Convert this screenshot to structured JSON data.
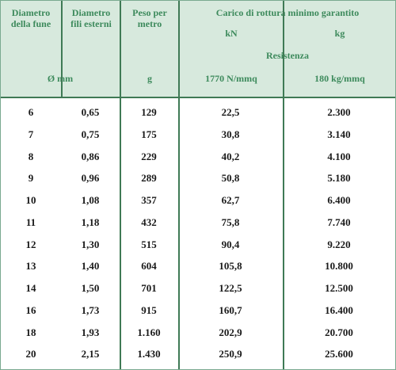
{
  "header": {
    "col1": [
      "Diametro",
      "della fune"
    ],
    "col2": [
      "Diametro",
      "fili esterni"
    ],
    "col3": [
      "Peso per",
      "metro"
    ],
    "col4_title": "Carico  di rottura minimo  garantito",
    "kn": "kN",
    "kg": "kg",
    "resistenza": "Resistenza",
    "unit_mm": "Ø mm",
    "unit_g": "g",
    "unit_1770": "1770  N/mmq",
    "unit_180": "180  kg/mmq"
  },
  "rows": [
    {
      "d": "6",
      "fili": "0,65",
      "peso": "129",
      "kn": "22,5",
      "kg": "2.300"
    },
    {
      "d": "7",
      "fili": "0,75",
      "peso": "175",
      "kn": "30,8",
      "kg": "3.140"
    },
    {
      "d": "8",
      "fili": "0,86",
      "peso": "229",
      "kn": "40,2",
      "kg": "4.100"
    },
    {
      "d": "9",
      "fili": "0,96",
      "peso": "289",
      "kn": "50,8",
      "kg": "5.180"
    },
    {
      "d": "10",
      "fili": "1,08",
      "peso": "357",
      "kn": "62,7",
      "kg": "6.400"
    },
    {
      "d": "11",
      "fili": "1,18",
      "peso": "432",
      "kn": "75,8",
      "kg": "7.740"
    },
    {
      "d": "12",
      "fili": "1,30",
      "peso": "515",
      "kn": "90,4",
      "kg": "9.220"
    },
    {
      "d": "13",
      "fili": "1,40",
      "peso": "604",
      "kn": "105,8",
      "kg": "10.800"
    },
    {
      "d": "14",
      "fili": "1,50",
      "peso": "701",
      "kn": "122,5",
      "kg": "12.500"
    },
    {
      "d": "16",
      "fili": "1,73",
      "peso": "915",
      "kn": "160,7",
      "kg": "16.400"
    },
    {
      "d": "18",
      "fili": "1,93",
      "peso": "1.160",
      "kn": "202,9",
      "kg": "20.700"
    },
    {
      "d": "20",
      "fili": "2,15",
      "peso": "1.430",
      "kn": "250,9",
      "kg": "25.600"
    }
  ]
}
